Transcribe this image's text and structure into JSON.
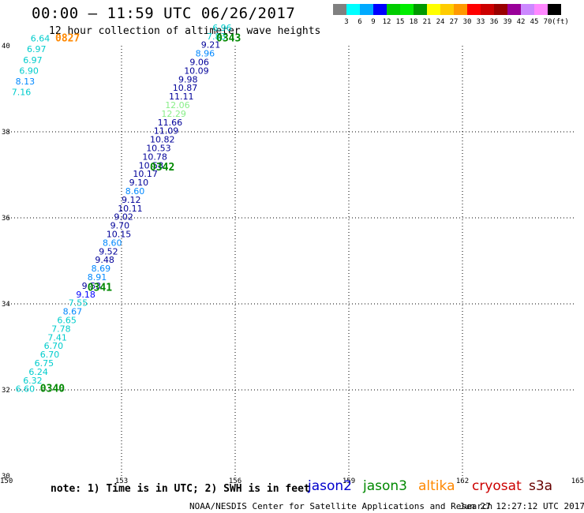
{
  "header": {
    "title": "00:00 – 11:59 UTC 06/26/2017",
    "subtitle": "12 hour collection of altimeter wave heights"
  },
  "colorbar": {
    "colors": [
      "#808080",
      "#00ffff",
      "#00aaff",
      "#0000ff",
      "#00cc00",
      "#00ee00",
      "#009900",
      "#ffff00",
      "#ffcc00",
      "#ff9900",
      "#ff0000",
      "#cc0000",
      "#990000",
      "#990099",
      "#cc88ff",
      "#ff88ff",
      "#000000"
    ],
    "labels": [
      "3",
      "6",
      "9",
      "12",
      "15",
      "18",
      "21",
      "24",
      "27",
      "30",
      "33",
      "36",
      "39",
      "42",
      "45",
      "70"
    ],
    "unit": "(ft)"
  },
  "map": {
    "xlim": [
      150,
      165
    ],
    "ylim": [
      30,
      40
    ],
    "x_ticks": [
      "150",
      "153",
      "156",
      "159",
      "162",
      "165"
    ],
    "y_ticks": [
      "30",
      "32",
      "34",
      "36",
      "38",
      "40"
    ],
    "grid": true
  },
  "chart_data": {
    "type": "scatter",
    "series": [
      {
        "name": "jason2",
        "points": [
          {
            "lon": 150.2,
            "lat": 31.95,
            "v": "6.60",
            "color": "#00cccc"
          },
          {
            "lon": 150.4,
            "lat": 32.15,
            "v": "6.32",
            "color": "#00cccc"
          },
          {
            "lon": 150.55,
            "lat": 32.35,
            "v": "6.24",
            "color": "#00cccc"
          },
          {
            "lon": 150.7,
            "lat": 32.55,
            "v": "6.75",
            "color": "#00cccc"
          },
          {
            "lon": 150.85,
            "lat": 32.75,
            "v": "6.70",
            "color": "#00cccc"
          },
          {
            "lon": 150.95,
            "lat": 32.95,
            "v": "6.70",
            "color": "#00cccc"
          },
          {
            "lon": 151.05,
            "lat": 33.15,
            "v": "7.41",
            "color": "#00cccc"
          },
          {
            "lon": 151.15,
            "lat": 33.35,
            "v": "7.78",
            "color": "#00cccc"
          },
          {
            "lon": 151.3,
            "lat": 33.55,
            "v": "6.65",
            "color": "#00cccc"
          },
          {
            "lon": 151.45,
            "lat": 33.75,
            "v": "8.67",
            "color": "#0088ff"
          },
          {
            "lon": 151.6,
            "lat": 33.95,
            "v": "7.55",
            "color": "#00cccc"
          },
          {
            "lon": 151.8,
            "lat": 34.15,
            "v": "9.18",
            "color": "#0000ff"
          },
          {
            "lon": 151.95,
            "lat": 34.35,
            "v": "9.53",
            "color": "#000099"
          },
          {
            "lon": 152.1,
            "lat": 34.55,
            "v": "8.91",
            "color": "#0088ff"
          },
          {
            "lon": 152.2,
            "lat": 34.75,
            "v": "8.69",
            "color": "#0088ff"
          },
          {
            "lon": 152.3,
            "lat": 34.95,
            "v": "9.48",
            "color": "#000099"
          },
          {
            "lon": 152.4,
            "lat": 35.15,
            "v": "9.52",
            "color": "#000099"
          },
          {
            "lon": 152.5,
            "lat": 35.35,
            "v": "8.60",
            "color": "#0088ff"
          },
          {
            "lon": 152.6,
            "lat": 35.55,
            "v": "10.15",
            "color": "#000099"
          },
          {
            "lon": 152.7,
            "lat": 35.75,
            "v": "9.70",
            "color": "#000099"
          },
          {
            "lon": 152.8,
            "lat": 35.95,
            "v": "9.02",
            "color": "#000099"
          },
          {
            "lon": 152.9,
            "lat": 36.15,
            "v": "10.11",
            "color": "#000099"
          },
          {
            "lon": 153.0,
            "lat": 36.35,
            "v": "9.12",
            "color": "#000099"
          },
          {
            "lon": 153.1,
            "lat": 36.55,
            "v": "8.60",
            "color": "#0088ff"
          },
          {
            "lon": 153.2,
            "lat": 36.75,
            "v": "9.10",
            "color": "#000099"
          },
          {
            "lon": 153.3,
            "lat": 36.95,
            "v": "10.17",
            "color": "#000099"
          },
          {
            "lon": 153.45,
            "lat": 37.15,
            "v": "10.58",
            "color": "#000099"
          },
          {
            "lon": 153.55,
            "lat": 37.35,
            "v": "10.78",
            "color": "#000099"
          },
          {
            "lon": 153.65,
            "lat": 37.55,
            "v": "10.53",
            "color": "#000099"
          },
          {
            "lon": 153.75,
            "lat": 37.75,
            "v": "10.82",
            "color": "#000099"
          },
          {
            "lon": 153.85,
            "lat": 37.95,
            "v": "11.09",
            "color": "#000099"
          },
          {
            "lon": 153.95,
            "lat": 38.15,
            "v": "11.66",
            "color": "#000099"
          },
          {
            "lon": 154.05,
            "lat": 38.35,
            "v": "12.29",
            "color": "#88ee88"
          },
          {
            "lon": 154.15,
            "lat": 38.55,
            "v": "12.06",
            "color": "#88ee88"
          },
          {
            "lon": 154.25,
            "lat": 38.75,
            "v": "11.11",
            "color": "#000099"
          },
          {
            "lon": 154.35,
            "lat": 38.95,
            "v": "10.87",
            "color": "#000099"
          },
          {
            "lon": 154.5,
            "lat": 39.15,
            "v": "9.98",
            "color": "#000099"
          },
          {
            "lon": 154.65,
            "lat": 39.35,
            "v": "10.09",
            "color": "#000099"
          },
          {
            "lon": 154.8,
            "lat": 39.55,
            "v": "9.06",
            "color": "#000099"
          },
          {
            "lon": 154.95,
            "lat": 39.75,
            "v": "8.96",
            "color": "#0088ff"
          },
          {
            "lon": 155.1,
            "lat": 39.95,
            "v": "9.21",
            "color": "#000099"
          },
          {
            "lon": 155.25,
            "lat": 40.15,
            "v": "7.83",
            "color": "#00cccc"
          },
          {
            "lon": 155.4,
            "lat": 40.35,
            "v": "6.96",
            "color": "#00cccc"
          }
        ]
      },
      {
        "name": "altika",
        "points": [
          {
            "lon": 150.6,
            "lat": 40.1,
            "v": "6.64",
            "color": "#00cccc"
          },
          {
            "lon": 150.5,
            "lat": 39.85,
            "v": "6.97",
            "color": "#00cccc"
          },
          {
            "lon": 150.4,
            "lat": 39.6,
            "v": "6.97",
            "color": "#00cccc"
          },
          {
            "lon": 150.3,
            "lat": 39.35,
            "v": "6.90",
            "color": "#00cccc"
          },
          {
            "lon": 150.2,
            "lat": 39.1,
            "v": "8.13",
            "color": "#0088ff"
          },
          {
            "lon": 150.1,
            "lat": 38.85,
            "v": "7.16",
            "color": "#00cccc"
          }
        ]
      }
    ],
    "time_labels": [
      {
        "lon": 150.85,
        "lat": 31.95,
        "text": "0340",
        "color": "#008800"
      },
      {
        "lon": 152.1,
        "lat": 34.3,
        "text": "0341",
        "color": "#008800"
      },
      {
        "lon": 153.75,
        "lat": 37.1,
        "text": "0342",
        "color": "#008800"
      },
      {
        "lon": 155.5,
        "lat": 40.1,
        "text": "0343",
        "color": "#008800"
      },
      {
        "lon": 151.25,
        "lat": 40.1,
        "text": "0827",
        "color": "#ff8800"
      }
    ]
  },
  "footer": {
    "note": "note: 1) Time is in UTC; 2) SWH is in feet",
    "legend": [
      {
        "label": "jason2",
        "color": "#0000cc"
      },
      {
        "label": "jason3",
        "color": "#008800"
      },
      {
        "label": "altika",
        "color": "#ff8800"
      },
      {
        "label": "cryosat",
        "color": "#cc0000"
      },
      {
        "label": "s3a",
        "color": "#660000"
      }
    ],
    "credit": "NOAA/NESDIS Center for Satellite Applications and Research",
    "timestamp": "Jun 27 12:27:12 UTC 2017"
  }
}
